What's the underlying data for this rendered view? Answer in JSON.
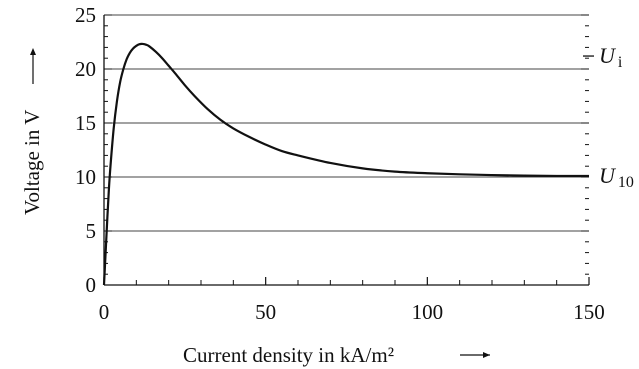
{
  "chart_data": {
    "type": "line",
    "title": "",
    "xlabel": "Current density in kA/m²",
    "ylabel": "Voltage in V",
    "xlim": [
      0,
      150
    ],
    "ylim": [
      0,
      25
    ],
    "x_ticks": [
      "0",
      "50",
      "100",
      "150"
    ],
    "y_ticks": [
      "0",
      "5",
      "10",
      "15",
      "20",
      "25"
    ],
    "grid": "horizontal",
    "series": [
      {
        "x": [
          0,
          0.5,
          1,
          1.5,
          2,
          3,
          4,
          5,
          6,
          7,
          8,
          9,
          10,
          11,
          12,
          13,
          14,
          16,
          18,
          20,
          22,
          25,
          28,
          32,
          36,
          40,
          45,
          50,
          55,
          60,
          70,
          80,
          90,
          100,
          110,
          120,
          130,
          140,
          150
        ],
        "y": [
          0,
          3,
          6,
          8.8,
          11,
          14.5,
          17,
          18.8,
          20,
          20.9,
          21.5,
          21.9,
          22.15,
          22.3,
          22.32,
          22.25,
          22.1,
          21.6,
          21,
          20.3,
          19.6,
          18.5,
          17.5,
          16.3,
          15.3,
          14.5,
          13.7,
          13,
          12.4,
          12,
          11.3,
          10.8,
          10.5,
          10.35,
          10.25,
          10.18,
          10.13,
          10.1,
          10.1
        ]
      }
    ],
    "annotations": [
      {
        "label": "U",
        "subscript": "i",
        "y": 21.2
      },
      {
        "label": "U",
        "subscript": "10",
        "y": 10.1
      }
    ]
  }
}
